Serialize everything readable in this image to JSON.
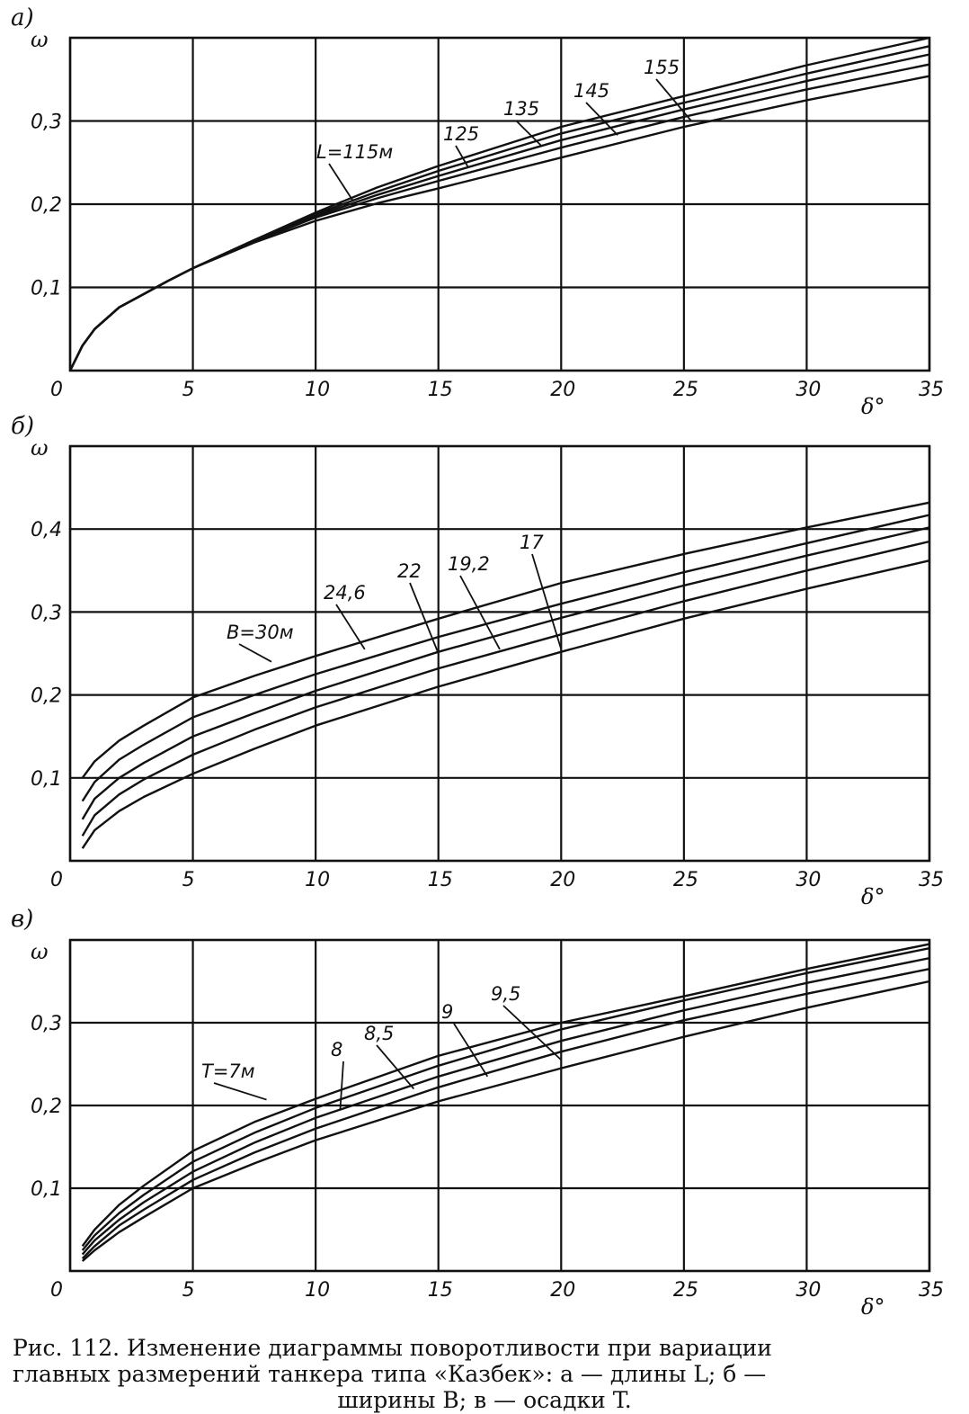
{
  "chart_data": [
    {
      "type": "line",
      "panel_label": "а)",
      "ylabel": "ω",
      "xlabel": "δ°",
      "xlim": [
        0,
        35
      ],
      "ylim": [
        0,
        0.4
      ],
      "x_ticks": [
        "0",
        "5",
        "10",
        "15",
        "20",
        "25",
        "30",
        "35"
      ],
      "y_ticks": [
        "0,1",
        "0,2",
        "0,3"
      ],
      "grid": true,
      "x": [
        0,
        0.5,
        1,
        2,
        3,
        4,
        5,
        7.5,
        10,
        12.5,
        15,
        20,
        25,
        30,
        35
      ],
      "series": [
        {
          "name": "L=115м",
          "values": [
            0,
            0.03,
            0.05,
            0.076,
            0.092,
            0.108,
            0.123,
            0.157,
            0.19,
            0.22,
            0.246,
            0.293,
            0.33,
            0.367,
            0.4
          ]
        },
        {
          "name": "125",
          "values": [
            0,
            0.03,
            0.05,
            0.076,
            0.092,
            0.108,
            0.123,
            0.157,
            0.188,
            0.215,
            0.24,
            0.285,
            0.322,
            0.357,
            0.39
          ]
        },
        {
          "name": "135",
          "values": [
            0,
            0.03,
            0.05,
            0.076,
            0.092,
            0.108,
            0.123,
            0.156,
            0.186,
            0.211,
            0.234,
            0.277,
            0.314,
            0.348,
            0.38
          ]
        },
        {
          "name": "145",
          "values": [
            0,
            0.03,
            0.05,
            0.076,
            0.092,
            0.108,
            0.123,
            0.155,
            0.184,
            0.207,
            0.228,
            0.268,
            0.305,
            0.338,
            0.368
          ]
        },
        {
          "name": "155",
          "values": [
            0,
            0.03,
            0.05,
            0.076,
            0.092,
            0.108,
            0.123,
            0.154,
            0.18,
            0.201,
            0.219,
            0.256,
            0.293,
            0.325,
            0.354
          ]
        }
      ],
      "annotations": [
        "L=115м",
        "125",
        "135",
        "145",
        "155"
      ]
    },
    {
      "type": "line",
      "panel_label": "б)",
      "ylabel": "ω",
      "xlabel": "δ°",
      "xlim": [
        0,
        35
      ],
      "ylim": [
        0,
        0.5
      ],
      "x_ticks": [
        "0",
        "5",
        "10",
        "15",
        "20",
        "25",
        "30",
        "35"
      ],
      "y_ticks": [
        "0,1",
        "0,2",
        "0,3",
        "0,4"
      ],
      "grid": true,
      "x": [
        0.5,
        1,
        2,
        3,
        5,
        7.5,
        10,
        15,
        20,
        25,
        30,
        35
      ],
      "series": [
        {
          "name": "В=30м",
          "values": [
            0.1,
            0.12,
            0.145,
            0.163,
            0.197,
            0.223,
            0.247,
            0.292,
            0.335,
            0.37,
            0.402,
            0.432
          ]
        },
        {
          "name": "24,6",
          "values": [
            0.072,
            0.095,
            0.122,
            0.14,
            0.173,
            0.2,
            0.225,
            0.27,
            0.31,
            0.348,
            0.383,
            0.417
          ]
        },
        {
          "name": "22",
          "values": [
            0.05,
            0.075,
            0.1,
            0.118,
            0.15,
            0.178,
            0.205,
            0.252,
            0.293,
            0.332,
            0.368,
            0.402
          ]
        },
        {
          "name": "19,2",
          "values": [
            0.03,
            0.055,
            0.08,
            0.098,
            0.128,
            0.158,
            0.185,
            0.232,
            0.273,
            0.313,
            0.35,
            0.385
          ]
        },
        {
          "name": "17",
          "values": [
            0.015,
            0.037,
            0.06,
            0.077,
            0.105,
            0.135,
            0.163,
            0.21,
            0.252,
            0.292,
            0.328,
            0.362
          ]
        }
      ],
      "annotations": [
        "В=30м",
        "24,6",
        "22",
        "19,2",
        "17"
      ]
    },
    {
      "type": "line",
      "panel_label": "в)",
      "ylabel": "ω",
      "xlabel": "δ°",
      "xlim": [
        0,
        35
      ],
      "ylim": [
        0,
        0.4
      ],
      "x_ticks": [
        "0",
        "5",
        "10",
        "15",
        "20",
        "25",
        "30",
        "35"
      ],
      "y_ticks": [
        "0,1",
        "0,2",
        "0,3"
      ],
      "grid": true,
      "x": [
        0.5,
        1,
        2,
        3,
        5,
        7.5,
        10,
        15,
        20,
        25,
        30,
        35
      ],
      "series": [
        {
          "name": "Т=7м",
          "values": [
            0.03,
            0.05,
            0.08,
            0.103,
            0.145,
            0.18,
            0.208,
            0.26,
            0.3,
            0.332,
            0.365,
            0.395
          ]
        },
        {
          "name": "8",
          "values": [
            0.025,
            0.043,
            0.07,
            0.092,
            0.132,
            0.167,
            0.197,
            0.248,
            0.292,
            0.327,
            0.36,
            0.39
          ]
        },
        {
          "name": "8,5",
          "values": [
            0.02,
            0.037,
            0.062,
            0.083,
            0.12,
            0.155,
            0.185,
            0.235,
            0.278,
            0.315,
            0.348,
            0.378
          ]
        },
        {
          "name": "9",
          "values": [
            0.015,
            0.03,
            0.055,
            0.074,
            0.11,
            0.143,
            0.172,
            0.222,
            0.265,
            0.303,
            0.335,
            0.365
          ]
        },
        {
          "name": "9,5",
          "values": [
            0.012,
            0.025,
            0.047,
            0.065,
            0.1,
            0.13,
            0.158,
            0.205,
            0.245,
            0.283,
            0.318,
            0.35
          ]
        }
      ],
      "annotations": [
        "Т=7м",
        "8",
        "8,5",
        "9",
        "9,5"
      ]
    }
  ],
  "caption": {
    "line1": "Рис. 112. Изменение диаграммы поворотливости при вариации",
    "line2": "главных размерений танкера типа «Казбек»: а — длины L; б —",
    "line3": "ширины B; в — осадки T."
  }
}
